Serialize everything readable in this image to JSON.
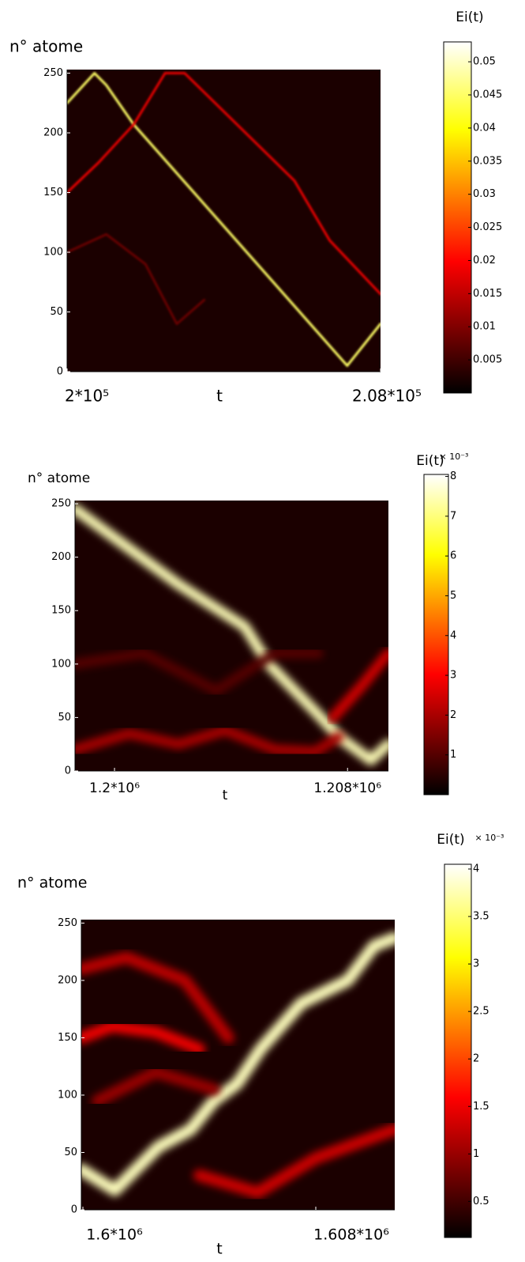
{
  "chart_data": [
    {
      "type": "heatmap",
      "ylabel": "n° atome",
      "xlabel": "t",
      "colorbar_label": "Ei(t)",
      "colormap": "hot",
      "xlim": [
        200000,
        208000
      ],
      "xticks": [
        {
          "value": 200000,
          "label": "2*10⁵"
        },
        {
          "value": 208000,
          "label": "2.08*10⁵"
        }
      ],
      "ylim": [
        0,
        253
      ],
      "yticks": [
        0,
        50,
        100,
        150,
        200,
        250
      ],
      "clim": [
        0,
        0.053
      ],
      "cticks": [
        0.005,
        0.01,
        0.015,
        0.02,
        0.025,
        0.03,
        0.035,
        0.04,
        0.045,
        0.05
      ],
      "ridges": [
        {
          "x": [
            200000,
            200700,
            201000,
            201700,
            207150,
            208000
          ],
          "y": [
            225,
            250,
            240,
            207,
            5,
            40
          ],
          "intensity": 0.045
        },
        {
          "x": [
            200000,
            200800,
            201700,
            202500,
            203000,
            205800,
            206700,
            208000
          ],
          "y": [
            150,
            175,
            207,
            250,
            250,
            160,
            110,
            65
          ],
          "intensity": 0.018
        },
        {
          "x": [
            200000,
            201000,
            202000,
            202800,
            203500
          ],
          "y": [
            100,
            115,
            90,
            40,
            60
          ],
          "intensity": 0.008
        }
      ]
    },
    {
      "type": "heatmap",
      "ylabel": "n° atome",
      "xlabel": "t",
      "colorbar_label": "Ei(t)",
      "colorbar_multiplier": "× 10⁻³",
      "colormap": "hot",
      "xlim": [
        1198644,
        1209403
      ],
      "xticks": [
        {
          "value": 1200000,
          "label": "1.2*10⁶"
        },
        {
          "value": 1208000,
          "label": "1.208*10⁶"
        }
      ],
      "ylim": [
        0,
        253
      ],
      "yticks": [
        0,
        50,
        100,
        150,
        200,
        250
      ],
      "clim": [
        0,
        8.05
      ],
      "cticks": [
        1,
        2,
        3,
        4,
        5,
        6,
        7,
        8
      ],
      "ridges": [
        {
          "x": [
            1198644,
            1202170,
            1204470,
            1205290,
            1206910,
            1207700,
            1208800,
            1209403
          ],
          "y": [
            245,
            175,
            135,
            100,
            55,
            32,
            10,
            25
          ],
          "intensity": 7.5
        },
        {
          "x": [
            1198644,
            1200500,
            1202200,
            1203800,
            1205500,
            1206900,
            1207700
          ],
          "y": [
            20,
            35,
            25,
            38,
            20,
            18,
            32
          ],
          "intensity": 2
        },
        {
          "x": [
            1207500,
            1208500,
            1209403
          ],
          "y": [
            50,
            80,
            110
          ],
          "intensity": 2.5
        },
        {
          "x": [
            1198644,
            1201000,
            1203500,
            1205500,
            1207000
          ],
          "y": [
            100,
            110,
            75,
            110,
            110
          ],
          "intensity": 1
        }
      ]
    },
    {
      "type": "heatmap",
      "ylabel": "n° atome",
      "xlabel": "t",
      "colorbar_label": "Ei(t)",
      "colorbar_multiplier": "× 10⁻³",
      "colormap": "hot",
      "xlim": [
        1599946,
        1610712
      ],
      "xticks": [
        {
          "value": 1600000,
          "label": "1.6*10⁶"
        },
        {
          "value": 1608000,
          "label": "1.608*10⁶"
        }
      ],
      "ylim": [
        0,
        253
      ],
      "yticks": [
        0,
        50,
        100,
        150,
        200,
        250
      ],
      "clim": [
        0.12,
        4.05
      ],
      "cticks": [
        0.5,
        1,
        1.5,
        2,
        2.5,
        3,
        3.5,
        4
      ],
      "ridges": [
        {
          "x": [
            1599946,
            1601100,
            1602600,
            1603700,
            1604500,
            1605300,
            1606100,
            1607500,
            1609100,
            1610000,
            1610712
          ],
          "y": [
            35,
            17,
            55,
            70,
            95,
            110,
            140,
            180,
            200,
            230,
            237
          ],
          "intensity": 3.8
        },
        {
          "x": [
            1599946,
            1601000,
            1602500,
            1604000
          ],
          "y": [
            150,
            160,
            155,
            140
          ],
          "intensity": 1.5
        },
        {
          "x": [
            1599946,
            1601500,
            1603500,
            1605000
          ],
          "y": [
            210,
            220,
            200,
            150
          ],
          "intensity": 1.2
        },
        {
          "x": [
            1604000,
            1606000,
            1608000,
            1610712
          ],
          "y": [
            30,
            15,
            45,
            70
          ],
          "intensity": 1.3
        },
        {
          "x": [
            1600500,
            1602500,
            1604500
          ],
          "y": [
            95,
            120,
            105
          ],
          "intensity": 1
        }
      ]
    }
  ]
}
